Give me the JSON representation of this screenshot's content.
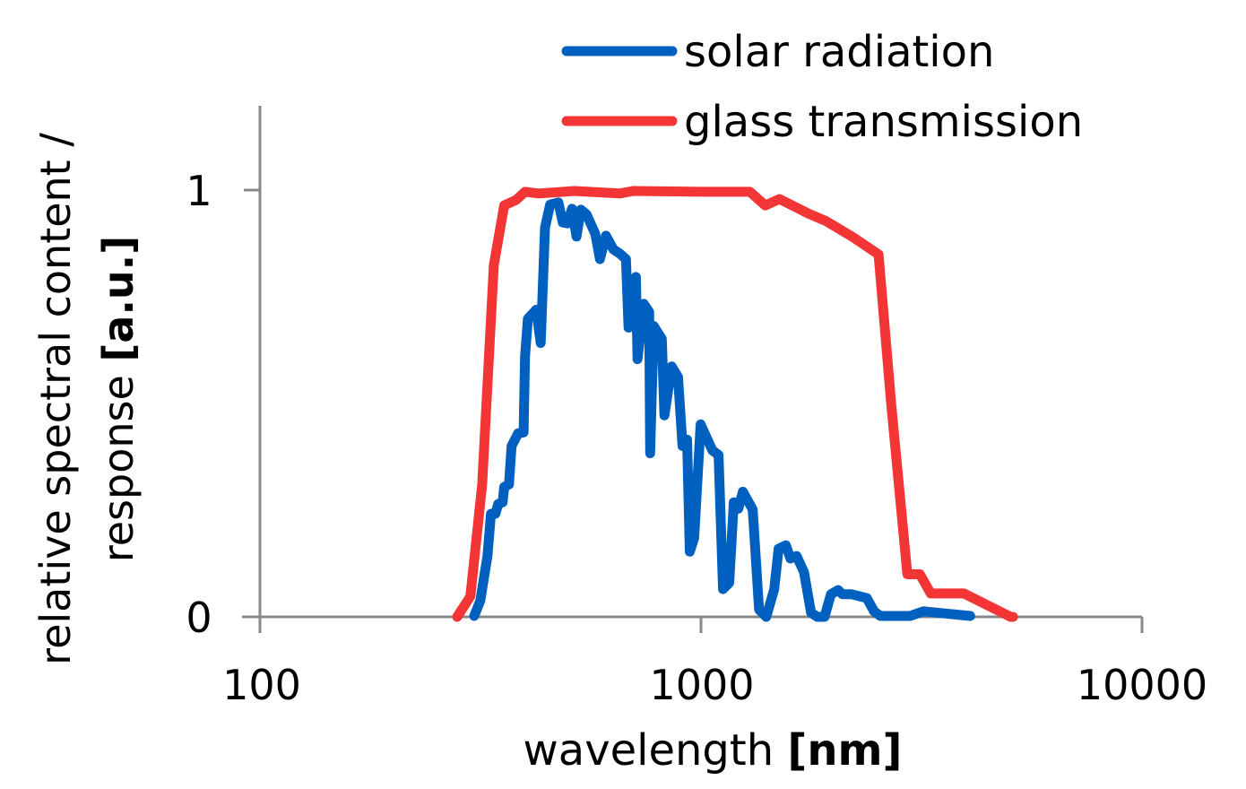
{
  "chart_data": {
    "type": "line",
    "title": "",
    "xlabel": "wavelength",
    "xlabel_unit": "[nm]",
    "ylabel_line1": "relative spectral content /",
    "ylabel_line2": "response",
    "ylabel_unit": "[a.u.]",
    "x_scale": "log",
    "xlim": [
      100,
      10000
    ],
    "ylim": [
      0,
      1.2
    ],
    "x_ticks": [
      "100",
      "1000",
      "10000"
    ],
    "y_ticks": [
      "0",
      "1"
    ],
    "grid": false,
    "legend_position": "top-right",
    "series": [
      {
        "name": "solar radiation",
        "color": "#0060C0",
        "points": [
          [
            306,
            0.002
          ],
          [
            316,
            0.038
          ],
          [
            328,
            0.143
          ],
          [
            334,
            0.242
          ],
          [
            342,
            0.242
          ],
          [
            347,
            0.265
          ],
          [
            355,
            0.269
          ],
          [
            358,
            0.305
          ],
          [
            367,
            0.311
          ],
          [
            372,
            0.401
          ],
          [
            385,
            0.431
          ],
          [
            396,
            0.433
          ],
          [
            399,
            0.611
          ],
          [
            405,
            0.7
          ],
          [
            423,
            0.721
          ],
          [
            433,
            0.643
          ],
          [
            443,
            0.914
          ],
          [
            455,
            0.968
          ],
          [
            475,
            0.973
          ],
          [
            486,
            0.926
          ],
          [
            498,
            0.924
          ],
          [
            510,
            0.958
          ],
          [
            522,
            0.893
          ],
          [
            534,
            0.956
          ],
          [
            550,
            0.945
          ],
          [
            576,
            0.899
          ],
          [
            590,
            0.84
          ],
          [
            609,
            0.895
          ],
          [
            633,
            0.863
          ],
          [
            654,
            0.853
          ],
          [
            676,
            0.84
          ],
          [
            685,
            0.679
          ],
          [
            712,
            0.798
          ],
          [
            718,
            0.605
          ],
          [
            742,
            0.735
          ],
          [
            763,
            0.716
          ],
          [
            767,
            0.384
          ],
          [
            781,
            0.683
          ],
          [
            815,
            0.653
          ],
          [
            826,
            0.473
          ],
          [
            858,
            0.588
          ],
          [
            887,
            0.563
          ],
          [
            908,
            0.401
          ],
          [
            930,
            0.416
          ],
          [
            943,
            0.153
          ],
          [
            965,
            0.185
          ],
          [
            998,
            0.452
          ],
          [
            1061,
            0.391
          ],
          [
            1096,
            0.38
          ],
          [
            1122,
            0.065
          ],
          [
            1159,
            0.08
          ],
          [
            1187,
            0.269
          ],
          [
            1215,
            0.254
          ],
          [
            1244,
            0.294
          ],
          [
            1310,
            0.252
          ],
          [
            1354,
            0.017
          ],
          [
            1406,
            0
          ],
          [
            1466,
            0.065
          ],
          [
            1500,
            0.16
          ],
          [
            1558,
            0.168
          ],
          [
            1595,
            0.137
          ],
          [
            1648,
            0.143
          ],
          [
            1712,
            0.105
          ],
          [
            1777,
            0.01
          ],
          [
            1836,
            0
          ],
          [
            1906,
            0
          ],
          [
            1971,
            0.053
          ],
          [
            2046,
            0.063
          ],
          [
            2094,
            0.053
          ],
          [
            2195,
            0.053
          ],
          [
            2377,
            0.044
          ],
          [
            2469,
            0.013
          ],
          [
            2551,
            0.002
          ],
          [
            2979,
            0.002
          ],
          [
            3196,
            0.013
          ],
          [
            3428,
            0.01
          ],
          [
            4079,
            0.002
          ]
        ]
      },
      {
        "name": "glass transmission",
        "color": "#F33535",
        "points": [
          [
            280,
            0
          ],
          [
            300,
            0.048
          ],
          [
            319,
            0.311
          ],
          [
            339,
            0.826
          ],
          [
            358,
            0.966
          ],
          [
            381,
            0.979
          ],
          [
            399,
            0.998
          ],
          [
            429,
            0.994
          ],
          [
            517,
            1.0
          ],
          [
            654,
            0.994
          ],
          [
            702,
            1.0
          ],
          [
            998,
            0.998
          ],
          [
            1291,
            0.998
          ],
          [
            1399,
            0.966
          ],
          [
            1507,
            0.981
          ],
          [
            1752,
            0.947
          ],
          [
            1923,
            0.929
          ],
          [
            2216,
            0.891
          ],
          [
            2527,
            0.851
          ],
          [
            2699,
            0.5
          ],
          [
            2937,
            0.1
          ],
          [
            3136,
            0.1
          ],
          [
            3319,
            0.055
          ],
          [
            3947,
            0.055
          ],
          [
            5037,
            0
          ],
          [
            5100,
            0
          ]
        ]
      }
    ]
  }
}
